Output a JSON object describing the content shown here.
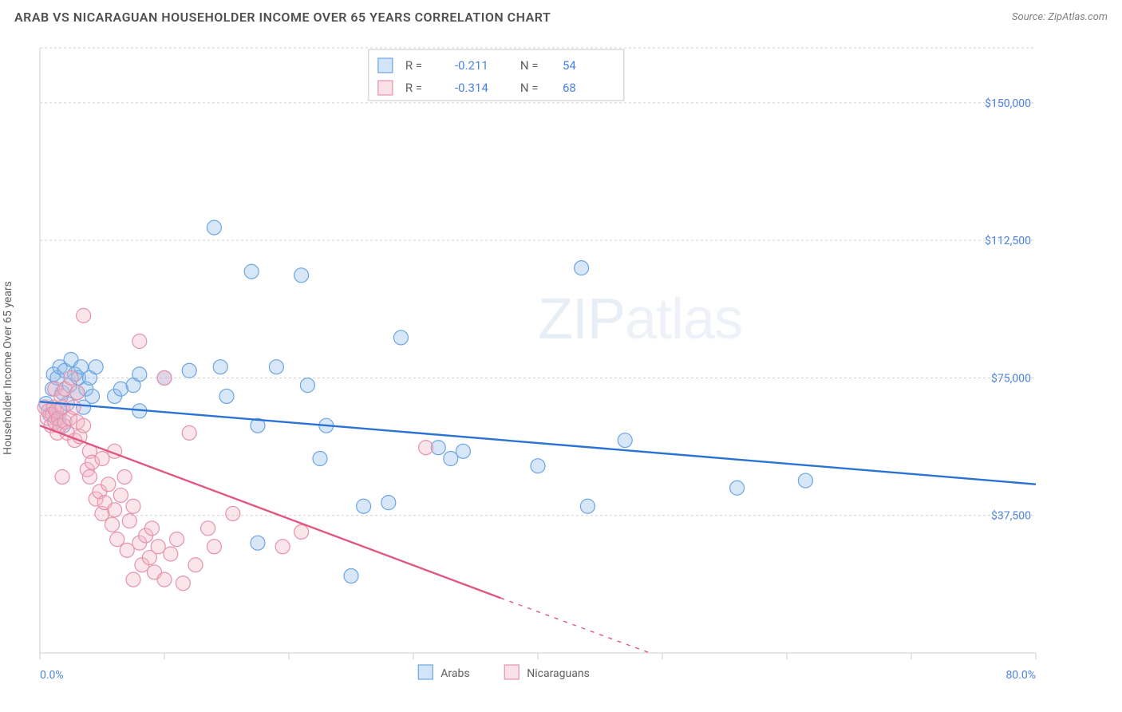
{
  "header": {
    "title": "ARAB VS NICARAGUAN HOUSEHOLDER INCOME OVER 65 YEARS CORRELATION CHART",
    "source": "Source: ZipAtlas.com"
  },
  "watermark": {
    "text1": "ZIP",
    "text2": "atlas"
  },
  "chart": {
    "type": "scatter",
    "background_color": "#ffffff",
    "grid_color": "#d0d0d0",
    "axis_color": "#cccccc",
    "label_color": "#606060",
    "tick_label_color": "#4c83e0",
    "ylabel": "Householder Income Over 65 years",
    "ylabel_fontsize": 14,
    "tick_fontsize": 14,
    "xlim": [
      0,
      80
    ],
    "ylim": [
      0,
      165000
    ],
    "x_ticks": [
      0,
      10,
      20,
      30,
      40,
      50,
      60,
      70,
      80
    ],
    "y_gridlines": [
      37500,
      75000,
      112500,
      150000
    ],
    "y_tick_labels": [
      "$37,500",
      "$75,000",
      "$112,500",
      "$150,000"
    ],
    "x_min_label": "0.0%",
    "x_max_label": "80.0%",
    "marker_radius": 9,
    "series": [
      {
        "name": "Arabs",
        "color_stroke": "#6ca5e0",
        "color_fill": "#8fbbeb",
        "r": "-0.211",
        "n": "54",
        "trend": {
          "color": "#2a72d4",
          "solid": [
            [
              0,
              68500
            ],
            [
              80,
              46000
            ]
          ],
          "dash": null
        },
        "points": [
          [
            0.5,
            68000
          ],
          [
            0.8,
            65000
          ],
          [
            1.0,
            72000
          ],
          [
            1.1,
            76000
          ],
          [
            1.3,
            64000
          ],
          [
            1.4,
            75000
          ],
          [
            1.6,
            78000
          ],
          [
            1.6,
            66000
          ],
          [
            1.8,
            71000
          ],
          [
            1.9,
            62000
          ],
          [
            2.0,
            77000
          ],
          [
            2.2,
            68000
          ],
          [
            2.4,
            73000
          ],
          [
            2.5,
            80000
          ],
          [
            2.8,
            76000
          ],
          [
            3.0,
            71000
          ],
          [
            3.1,
            75000
          ],
          [
            3.3,
            78000
          ],
          [
            3.5,
            67000
          ],
          [
            3.7,
            72000
          ],
          [
            4.0,
            75000
          ],
          [
            4.2,
            70000
          ],
          [
            4.5,
            78000
          ],
          [
            6.0,
            70000
          ],
          [
            6.5,
            72000
          ],
          [
            7.5,
            73000
          ],
          [
            8.0,
            66000
          ],
          [
            8.0,
            76000
          ],
          [
            10.0,
            75000
          ],
          [
            12.0,
            77000
          ],
          [
            14.0,
            116000
          ],
          [
            14.5,
            78000
          ],
          [
            15.0,
            70000
          ],
          [
            17.0,
            104000
          ],
          [
            17.5,
            62000
          ],
          [
            17.5,
            30000
          ],
          [
            19.0,
            78000
          ],
          [
            21.0,
            103000
          ],
          [
            21.5,
            73000
          ],
          [
            22.5,
            53000
          ],
          [
            23.0,
            62000
          ],
          [
            25.0,
            21000
          ],
          [
            26.0,
            40000
          ],
          [
            28.0,
            41000
          ],
          [
            29.0,
            86000
          ],
          [
            32.0,
            56000
          ],
          [
            33.0,
            53000
          ],
          [
            34.0,
            55000
          ],
          [
            40.0,
            51000
          ],
          [
            43.5,
            105000
          ],
          [
            44.0,
            40000
          ],
          [
            47.0,
            58000
          ],
          [
            56.0,
            45000
          ],
          [
            61.5,
            47000
          ]
        ]
      },
      {
        "name": "Nicaraguans",
        "color_stroke": "#e593ad",
        "color_fill": "#f2b4c6",
        "r": "-0.314",
        "n": "68",
        "trend": {
          "color": "#e0567f",
          "solid": [
            [
              0,
              62000
            ],
            [
              37,
              15000
            ]
          ],
          "dash": [
            [
              37,
              15000
            ],
            [
              49,
              0
            ]
          ]
        },
        "points": [
          [
            0.4,
            67000
          ],
          [
            0.6,
            64000
          ],
          [
            0.7,
            66000
          ],
          [
            0.9,
            62000
          ],
          [
            1.0,
            65000
          ],
          [
            1.1,
            67000
          ],
          [
            1.2,
            63000
          ],
          [
            1.2,
            72000
          ],
          [
            1.3,
            66000
          ],
          [
            1.4,
            60000
          ],
          [
            1.5,
            64000
          ],
          [
            1.6,
            62000
          ],
          [
            1.7,
            70000
          ],
          [
            1.8,
            67000
          ],
          [
            1.8,
            48000
          ],
          [
            2.0,
            63000
          ],
          [
            2.0,
            72000
          ],
          [
            2.2,
            60000
          ],
          [
            2.4,
            64000
          ],
          [
            2.5,
            75000
          ],
          [
            2.7,
            67000
          ],
          [
            2.8,
            58000
          ],
          [
            3.0,
            63000
          ],
          [
            3.0,
            71000
          ],
          [
            3.2,
            59000
          ],
          [
            3.5,
            62000
          ],
          [
            3.5,
            92000
          ],
          [
            3.8,
            50000
          ],
          [
            4.0,
            55000
          ],
          [
            4.0,
            48000
          ],
          [
            4.2,
            52000
          ],
          [
            4.5,
            42000
          ],
          [
            4.8,
            44000
          ],
          [
            5.0,
            53000
          ],
          [
            5.0,
            38000
          ],
          [
            5.2,
            41000
          ],
          [
            5.5,
            46000
          ],
          [
            5.8,
            35000
          ],
          [
            6.0,
            55000
          ],
          [
            6.0,
            39000
          ],
          [
            6.2,
            31000
          ],
          [
            6.5,
            43000
          ],
          [
            6.8,
            48000
          ],
          [
            7.0,
            28000
          ],
          [
            7.2,
            36000
          ],
          [
            7.5,
            40000
          ],
          [
            7.5,
            20000
          ],
          [
            8.0,
            85000
          ],
          [
            8.0,
            30000
          ],
          [
            8.2,
            24000
          ],
          [
            8.5,
            32000
          ],
          [
            8.8,
            26000
          ],
          [
            9.0,
            34000
          ],
          [
            9.2,
            22000
          ],
          [
            9.5,
            29000
          ],
          [
            10.0,
            75000
          ],
          [
            10.0,
            20000
          ],
          [
            10.5,
            27000
          ],
          [
            11.0,
            31000
          ],
          [
            11.5,
            19000
          ],
          [
            12.0,
            60000
          ],
          [
            12.5,
            24000
          ],
          [
            13.5,
            34000
          ],
          [
            14.0,
            29000
          ],
          [
            15.5,
            38000
          ],
          [
            19.5,
            29000
          ],
          [
            21.0,
            33000
          ],
          [
            31.0,
            56000
          ]
        ]
      }
    ],
    "top_legend": {
      "rows": [
        {
          "swatch_stroke": "#6ca5e0",
          "swatch_fill": "#8fbbeb",
          "r_label": "R =",
          "r_val": "-0.211",
          "n_label": "N =",
          "n_val": "54"
        },
        {
          "swatch_stroke": "#e593ad",
          "swatch_fill": "#f2b4c6",
          "r_label": "R =",
          "r_val": "-0.314",
          "n_label": "N =",
          "n_val": "68"
        }
      ]
    },
    "bottom_legend": {
      "items": [
        {
          "swatch_stroke": "#6ca5e0",
          "swatch_fill": "#8fbbeb",
          "label": "Arabs"
        },
        {
          "swatch_stroke": "#e593ad",
          "swatch_fill": "#f2b4c6",
          "label": "Nicaraguans"
        }
      ]
    }
  }
}
